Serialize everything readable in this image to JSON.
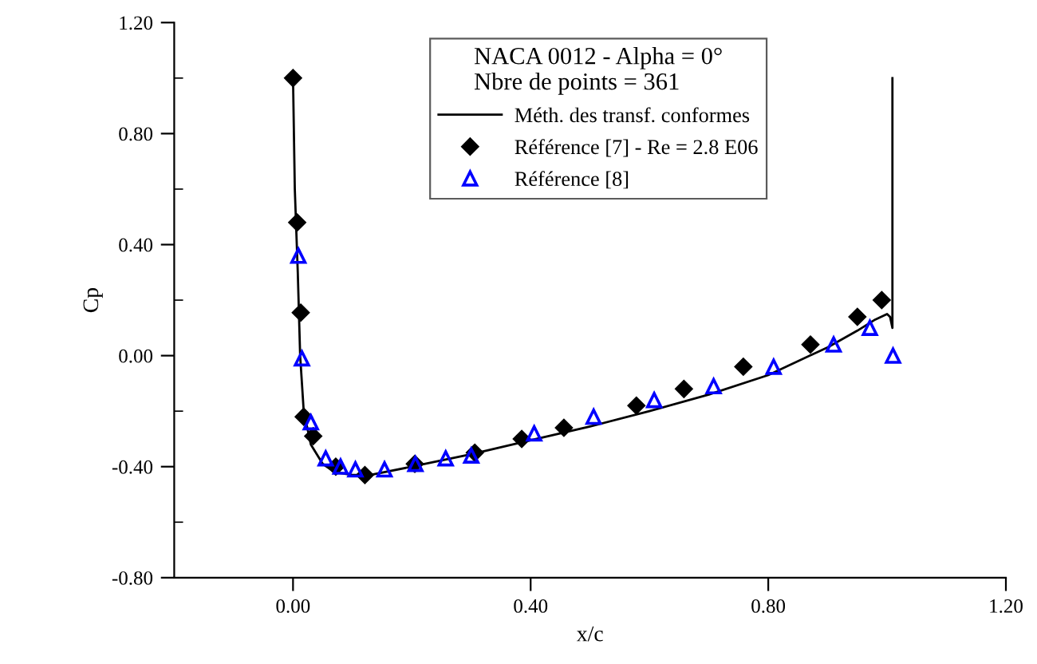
{
  "chart_data": {
    "type": "line",
    "xlabel": "x/c",
    "ylabel": "Cp",
    "legend_title": "NACA 0012 - Alpha = 0°\nNbre de points = 361",
    "legend": "top",
    "grid": false,
    "xlim": [
      -0.2,
      1.2
    ],
    "ylim": [
      -0.8,
      1.2
    ],
    "xticks": [
      {
        "value": 0,
        "label": "0.00"
      },
      {
        "value": 0.4,
        "label": "0.40"
      },
      {
        "value": 0.8,
        "label": "0.80"
      },
      {
        "value": 1.2,
        "label": "1.20"
      }
    ],
    "yticks": [
      {
        "value": -0.8,
        "label": "-0.80"
      },
      {
        "value": -0.6,
        "label": null
      },
      {
        "value": -0.4,
        "label": "-0.40"
      },
      {
        "value": -0.2,
        "label": null
      },
      {
        "value": 0,
        "label": "0.00"
      },
      {
        "value": 0.2,
        "label": null
      },
      {
        "value": 0.4,
        "label": "0.40"
      },
      {
        "value": 0.6,
        "label": null
      },
      {
        "value": 0.8,
        "label": "0.80"
      },
      {
        "value": 1.0,
        "label": null
      },
      {
        "value": 1.2,
        "label": "1.20"
      }
    ],
    "series": [
      {
        "name": "Méth. des transf. conformes",
        "marker": "none",
        "line_style": "solid",
        "color": "#000000",
        "x": [
          0.0,
          0.003,
          0.008,
          0.012,
          0.018,
          0.03,
          0.05,
          0.07,
          0.1,
          0.13,
          0.2,
          0.3,
          0.4,
          0.5,
          0.6,
          0.7,
          0.8,
          0.9,
          0.95,
          0.98,
          1.0,
          1.005,
          1.009,
          1.009
        ],
        "values": [
          1.0,
          0.6,
          0.3,
          0.0,
          -0.2,
          -0.32,
          -0.39,
          -0.42,
          -0.43,
          -0.43,
          -0.4,
          -0.355,
          -0.305,
          -0.255,
          -0.2,
          -0.14,
          -0.07,
          0.03,
          0.09,
          0.13,
          0.15,
          0.14,
          0.1,
          1.0
        ]
      },
      {
        "name": "Référence [7] - Re = 2.8 E06",
        "type": "scatter",
        "marker": "diamond",
        "color": "#000000",
        "x": [
          0.0,
          0.007,
          0.013,
          0.018,
          0.034,
          0.072,
          0.121,
          0.205,
          0.306,
          0.385,
          0.456,
          0.578,
          0.658,
          0.758,
          0.871,
          0.95,
          0.991
        ],
        "values": [
          1.0,
          0.48,
          0.155,
          -0.22,
          -0.29,
          -0.4,
          -0.43,
          -0.39,
          -0.35,
          -0.3,
          -0.26,
          -0.18,
          -0.12,
          -0.04,
          0.04,
          0.14,
          0.2
        ]
      },
      {
        "name": "Référence [8]",
        "type": "scatter",
        "marker": "triangle",
        "color": "#0000ff",
        "x": [
          0.009,
          0.015,
          0.03,
          0.055,
          0.08,
          0.105,
          0.154,
          0.206,
          0.257,
          0.3,
          0.406,
          0.506,
          0.608,
          0.708,
          0.809,
          0.91,
          0.971,
          1.01
        ],
        "values": [
          0.36,
          -0.01,
          -0.24,
          -0.37,
          -0.4,
          -0.41,
          -0.41,
          -0.39,
          -0.37,
          -0.36,
          -0.28,
          -0.22,
          -0.16,
          -0.11,
          -0.04,
          0.04,
          0.1,
          0.0
        ]
      }
    ]
  }
}
